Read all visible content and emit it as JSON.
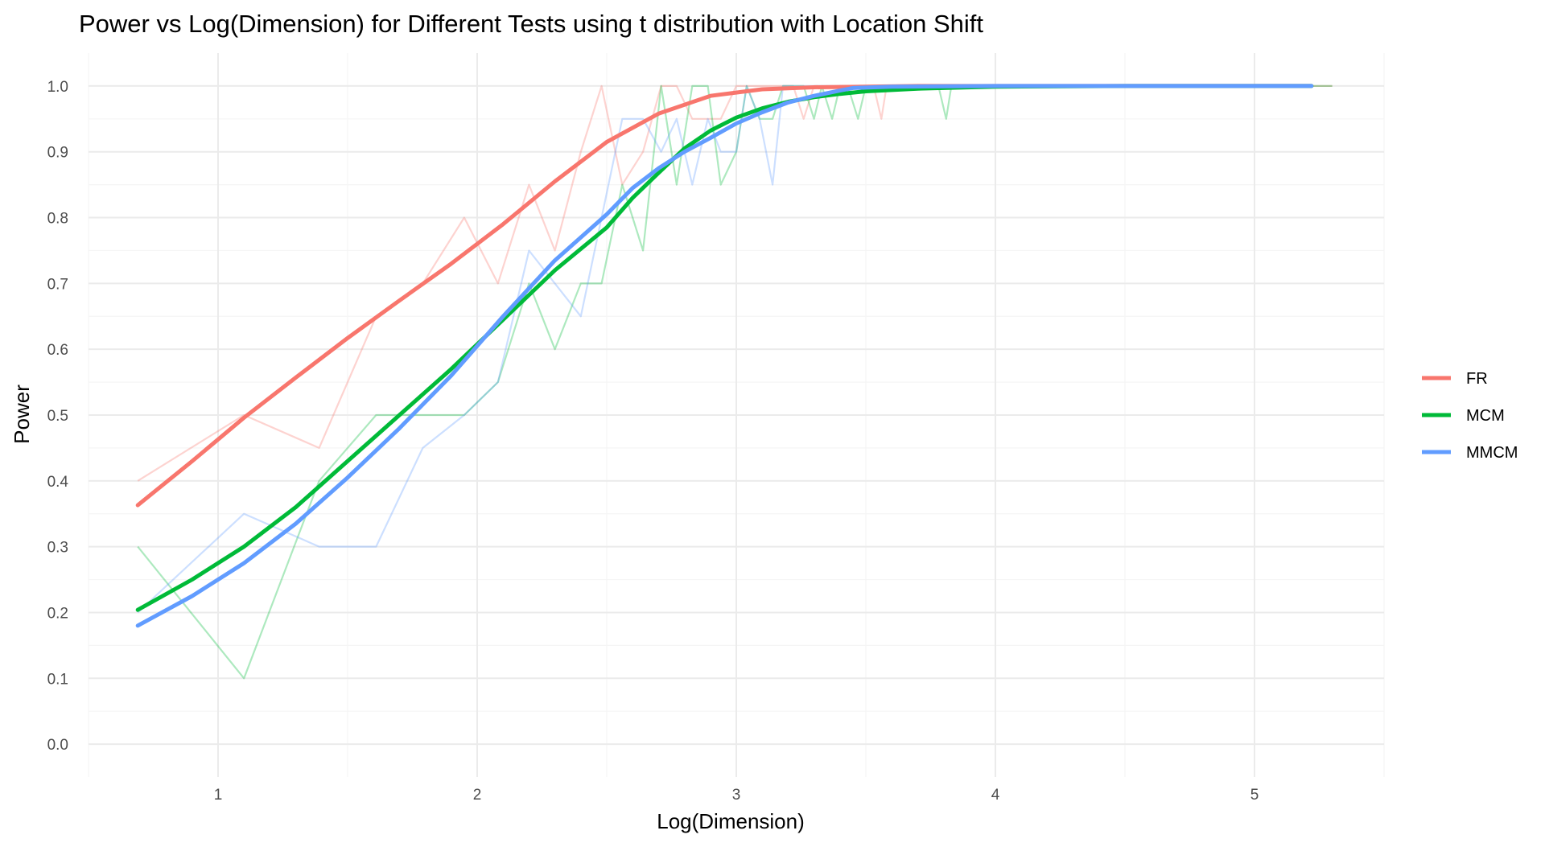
{
  "chart_data": {
    "type": "line",
    "title": "Power vs Log(Dimension) for Different Tests using t distribution with Location Shift",
    "xlabel": "Log(Dimension)",
    "ylabel": "Power",
    "xlim": [
      0.5,
      5.5
    ],
    "ylim": [
      -0.05,
      1.05
    ],
    "x_ticks": [
      1,
      2,
      3,
      4,
      5
    ],
    "x_tick_labels": [
      "1",
      "2",
      "3",
      "4",
      "5"
    ],
    "y_ticks": [
      0.0,
      0.1,
      0.2,
      0.3,
      0.4,
      0.5,
      0.6,
      0.7,
      0.8,
      0.9,
      1.0
    ],
    "y_tick_labels": [
      "0.0",
      "0.1",
      "0.2",
      "0.3",
      "0.4",
      "0.5",
      "0.6",
      "0.7",
      "0.8",
      "0.9",
      "1.0"
    ],
    "grid": true,
    "legend_position": "right",
    "series": [
      {
        "name": "FR",
        "color": "#F8766D",
        "raw": {
          "x": [
            0.69,
            1.1,
            1.39,
            1.61,
            1.79,
            1.95,
            2.08,
            2.2,
            2.3,
            2.4,
            2.48,
            2.56,
            2.64,
            2.71,
            2.77,
            2.83,
            2.89,
            2.94,
            3.0,
            3.04,
            3.09,
            3.14,
            3.18,
            3.22,
            3.26,
            3.3,
            3.33,
            3.37,
            3.4,
            3.43,
            3.47,
            3.5,
            3.53,
            3.56,
            3.58,
            3.61,
            3.64,
            3.66,
            3.69,
            3.71,
            3.74,
            3.76,
            3.78,
            3.81,
            3.83,
            4.0,
            4.5,
            5.0,
            5.3
          ],
          "y": [
            0.4,
            0.5,
            0.45,
            0.65,
            0.7,
            0.8,
            0.7,
            0.85,
            0.75,
            0.9,
            1.0,
            0.85,
            0.9,
            1.0,
            1.0,
            0.95,
            0.95,
            0.95,
            1.0,
            1.0,
            1.0,
            1.0,
            1.0,
            1.0,
            0.95,
            1.0,
            1.0,
            1.0,
            1.0,
            1.0,
            1.0,
            1.0,
            1.0,
            0.95,
            1.0,
            1.0,
            1.0,
            1.0,
            1.0,
            1.0,
            1.0,
            1.0,
            1.0,
            1.0,
            1.0,
            1.0,
            1.0,
            1.0,
            1.0
          ]
        },
        "smooth": {
          "x": [
            0.69,
            0.9,
            1.1,
            1.3,
            1.5,
            1.7,
            1.9,
            2.1,
            2.3,
            2.5,
            2.7,
            2.9,
            3.1,
            3.3,
            3.5,
            3.7,
            4.0,
            4.5,
            5.0,
            5.22
          ],
          "y": [
            0.363,
            0.43,
            0.496,
            0.557,
            0.617,
            0.674,
            0.73,
            0.79,
            0.855,
            0.915,
            0.958,
            0.985,
            0.995,
            0.998,
            0.999,
            1.0,
            1.0,
            1.0,
            1.0,
            1.0
          ]
        }
      },
      {
        "name": "MCM",
        "color": "#00BA38",
        "raw": {
          "x": [
            0.69,
            1.1,
            1.39,
            1.61,
            1.79,
            1.95,
            2.08,
            2.2,
            2.3,
            2.4,
            2.48,
            2.56,
            2.64,
            2.71,
            2.77,
            2.83,
            2.89,
            2.94,
            3.0,
            3.04,
            3.09,
            3.14,
            3.18,
            3.22,
            3.26,
            3.3,
            3.33,
            3.37,
            3.4,
            3.43,
            3.47,
            3.5,
            3.53,
            3.56,
            3.58,
            3.61,
            3.64,
            3.66,
            3.69,
            3.71,
            3.74,
            3.76,
            3.78,
            3.81,
            3.83,
            4.0,
            4.5,
            5.0,
            5.3
          ],
          "y": [
            0.3,
            0.1,
            0.4,
            0.5,
            0.5,
            0.5,
            0.55,
            0.7,
            0.6,
            0.7,
            0.7,
            0.85,
            0.75,
            1.0,
            0.85,
            1.0,
            1.0,
            0.85,
            0.9,
            1.0,
            0.95,
            0.95,
            1.0,
            1.0,
            1.0,
            0.95,
            1.0,
            0.95,
            1.0,
            1.0,
            0.95,
            1.0,
            1.0,
            1.0,
            1.0,
            1.0,
            1.0,
            1.0,
            1.0,
            1.0,
            1.0,
            1.0,
            1.0,
            0.95,
            1.0,
            1.0,
            1.0,
            1.0,
            1.0
          ]
        },
        "smooth": {
          "x": [
            0.69,
            0.9,
            1.1,
            1.3,
            1.5,
            1.7,
            1.9,
            2.1,
            2.3,
            2.5,
            2.6,
            2.7,
            2.8,
            2.9,
            3.0,
            3.1,
            3.2,
            3.3,
            3.4,
            3.5,
            3.7,
            4.0,
            4.5,
            5.0,
            5.22
          ],
          "y": [
            0.204,
            0.25,
            0.3,
            0.36,
            0.43,
            0.5,
            0.57,
            0.645,
            0.72,
            0.785,
            0.83,
            0.868,
            0.905,
            0.932,
            0.952,
            0.966,
            0.976,
            0.983,
            0.988,
            0.992,
            0.996,
            0.999,
            1.0,
            1.0,
            1.0
          ]
        }
      },
      {
        "name": "MMCM",
        "color": "#619CFF",
        "raw": {
          "x": [
            0.69,
            1.1,
            1.39,
            1.61,
            1.79,
            1.95,
            2.08,
            2.2,
            2.3,
            2.4,
            2.48,
            2.56,
            2.64,
            2.71,
            2.77,
            2.83,
            2.89,
            2.94,
            3.0,
            3.04,
            3.09,
            3.14,
            3.18,
            3.22,
            3.26,
            3.3,
            3.33,
            3.37,
            3.4,
            3.43,
            3.47,
            3.5,
            3.53,
            3.56,
            3.58,
            3.61,
            3.64,
            3.66,
            3.69,
            3.71,
            3.74,
            3.76,
            3.78,
            3.81,
            3.83,
            4.0,
            4.5,
            5.0,
            5.22
          ],
          "y": [
            0.2,
            0.35,
            0.3,
            0.3,
            0.45,
            0.5,
            0.55,
            0.75,
            0.7,
            0.65,
            0.8,
            0.95,
            0.95,
            0.9,
            0.95,
            0.85,
            0.95,
            0.9,
            0.9,
            1.0,
            0.95,
            0.85,
            1.0,
            1.0,
            1.0,
            1.0,
            1.0,
            1.0,
            1.0,
            1.0,
            1.0,
            1.0,
            1.0,
            1.0,
            1.0,
            1.0,
            1.0,
            1.0,
            1.0,
            1.0,
            1.0,
            1.0,
            1.0,
            1.0,
            1.0,
            1.0,
            1.0,
            1.0,
            1.0
          ]
        },
        "smooth": {
          "x": [
            0.69,
            0.9,
            1.1,
            1.3,
            1.5,
            1.7,
            1.9,
            2.1,
            2.3,
            2.5,
            2.6,
            2.7,
            2.8,
            2.9,
            3.0,
            3.1,
            3.2,
            3.3,
            3.4,
            3.45,
            3.6,
            4.0,
            4.5,
            5.0,
            5.22
          ],
          "y": [
            0.18,
            0.225,
            0.275,
            0.335,
            0.405,
            0.48,
            0.56,
            0.65,
            0.735,
            0.805,
            0.845,
            0.875,
            0.9,
            0.921,
            0.943,
            0.96,
            0.975,
            0.985,
            0.993,
            0.997,
            0.999,
            1.0,
            1.0,
            1.0,
            1.0
          ]
        }
      }
    ]
  }
}
